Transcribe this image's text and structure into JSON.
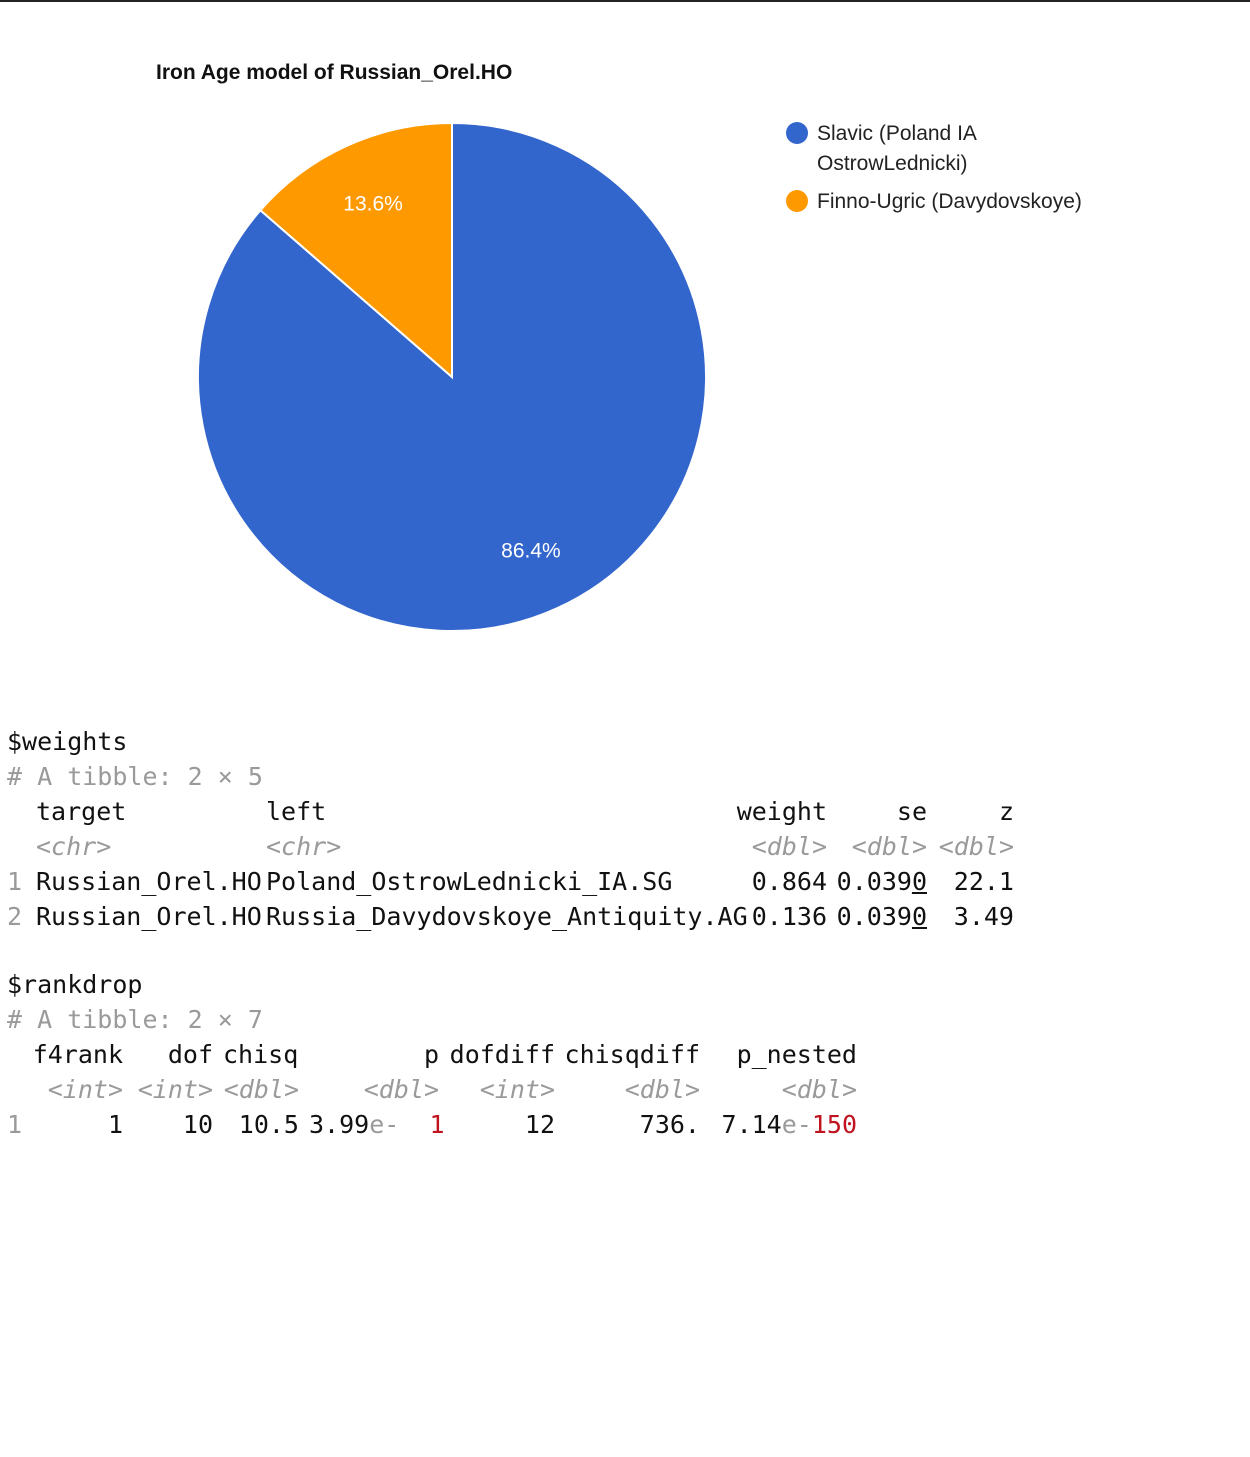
{
  "chart_data": {
    "type": "pie",
    "title": "Iron Age model of Russian_Orel.HO",
    "slices": [
      {
        "label": "Slavic (Poland IA OstrowLednicki)",
        "legend_lines": [
          "Slavic (Poland IA",
          "OstrowLednicki)"
        ],
        "value": 86.4,
        "value_label": "86.4%",
        "color": "#3366CC"
      },
      {
        "label": "Finno-Ugric (Davydovskoye)",
        "legend_lines": [
          "Finno-Ugric (Davydovskoye)"
        ],
        "value": 13.6,
        "value_label": "13.6%",
        "color": "#FF9900"
      }
    ],
    "start_angle_deg": 0,
    "direction": "clockwise",
    "legend_position": "right"
  },
  "weights": {
    "header": "$weights",
    "tibble": "# A tibble: 2 × 5",
    "columns": [
      "target",
      "left",
      "weight",
      "se",
      "z"
    ],
    "types": [
      "<chr>",
      "<chr>",
      "<dbl>",
      "<dbl>",
      "<dbl>"
    ],
    "rows": [
      {
        "n": "1",
        "target": "Russian_Orel.HO",
        "left": "Poland_OstrowLednicki_IA.SG",
        "weight": "0.864",
        "se_main": "0.039",
        "se_u": "0",
        "z": "22.1"
      },
      {
        "n": "2",
        "target": "Russian_Orel.HO",
        "left": "Russia_Davydovskoye_Antiquity.AG",
        "weight": "0.136",
        "se_main": "0.039",
        "se_u": "0",
        "z": "3.49"
      }
    ]
  },
  "rankdrop": {
    "header": "$rankdrop",
    "tibble": "# A tibble: 2 × 7",
    "columns": [
      "f4rank",
      "dof",
      "chisq",
      "p",
      "dofdiff",
      "chisqdiff",
      "p_nested"
    ],
    "types": [
      "<int>",
      "<int>",
      "<dbl>",
      "<dbl>",
      "<int>",
      "<dbl>",
      "<dbl>"
    ],
    "rows": [
      {
        "n": "1",
        "f4rank": "1",
        "dof": "10",
        "chisq": "10.5",
        "p_mant": "3.99",
        "p_e": "e-",
        "p_exp": "1",
        "dofdiff": "12",
        "chisqdiff": "736.",
        "pn_mant": "7.14",
        "pn_e": "e-",
        "pn_exp": "150"
      }
    ]
  }
}
